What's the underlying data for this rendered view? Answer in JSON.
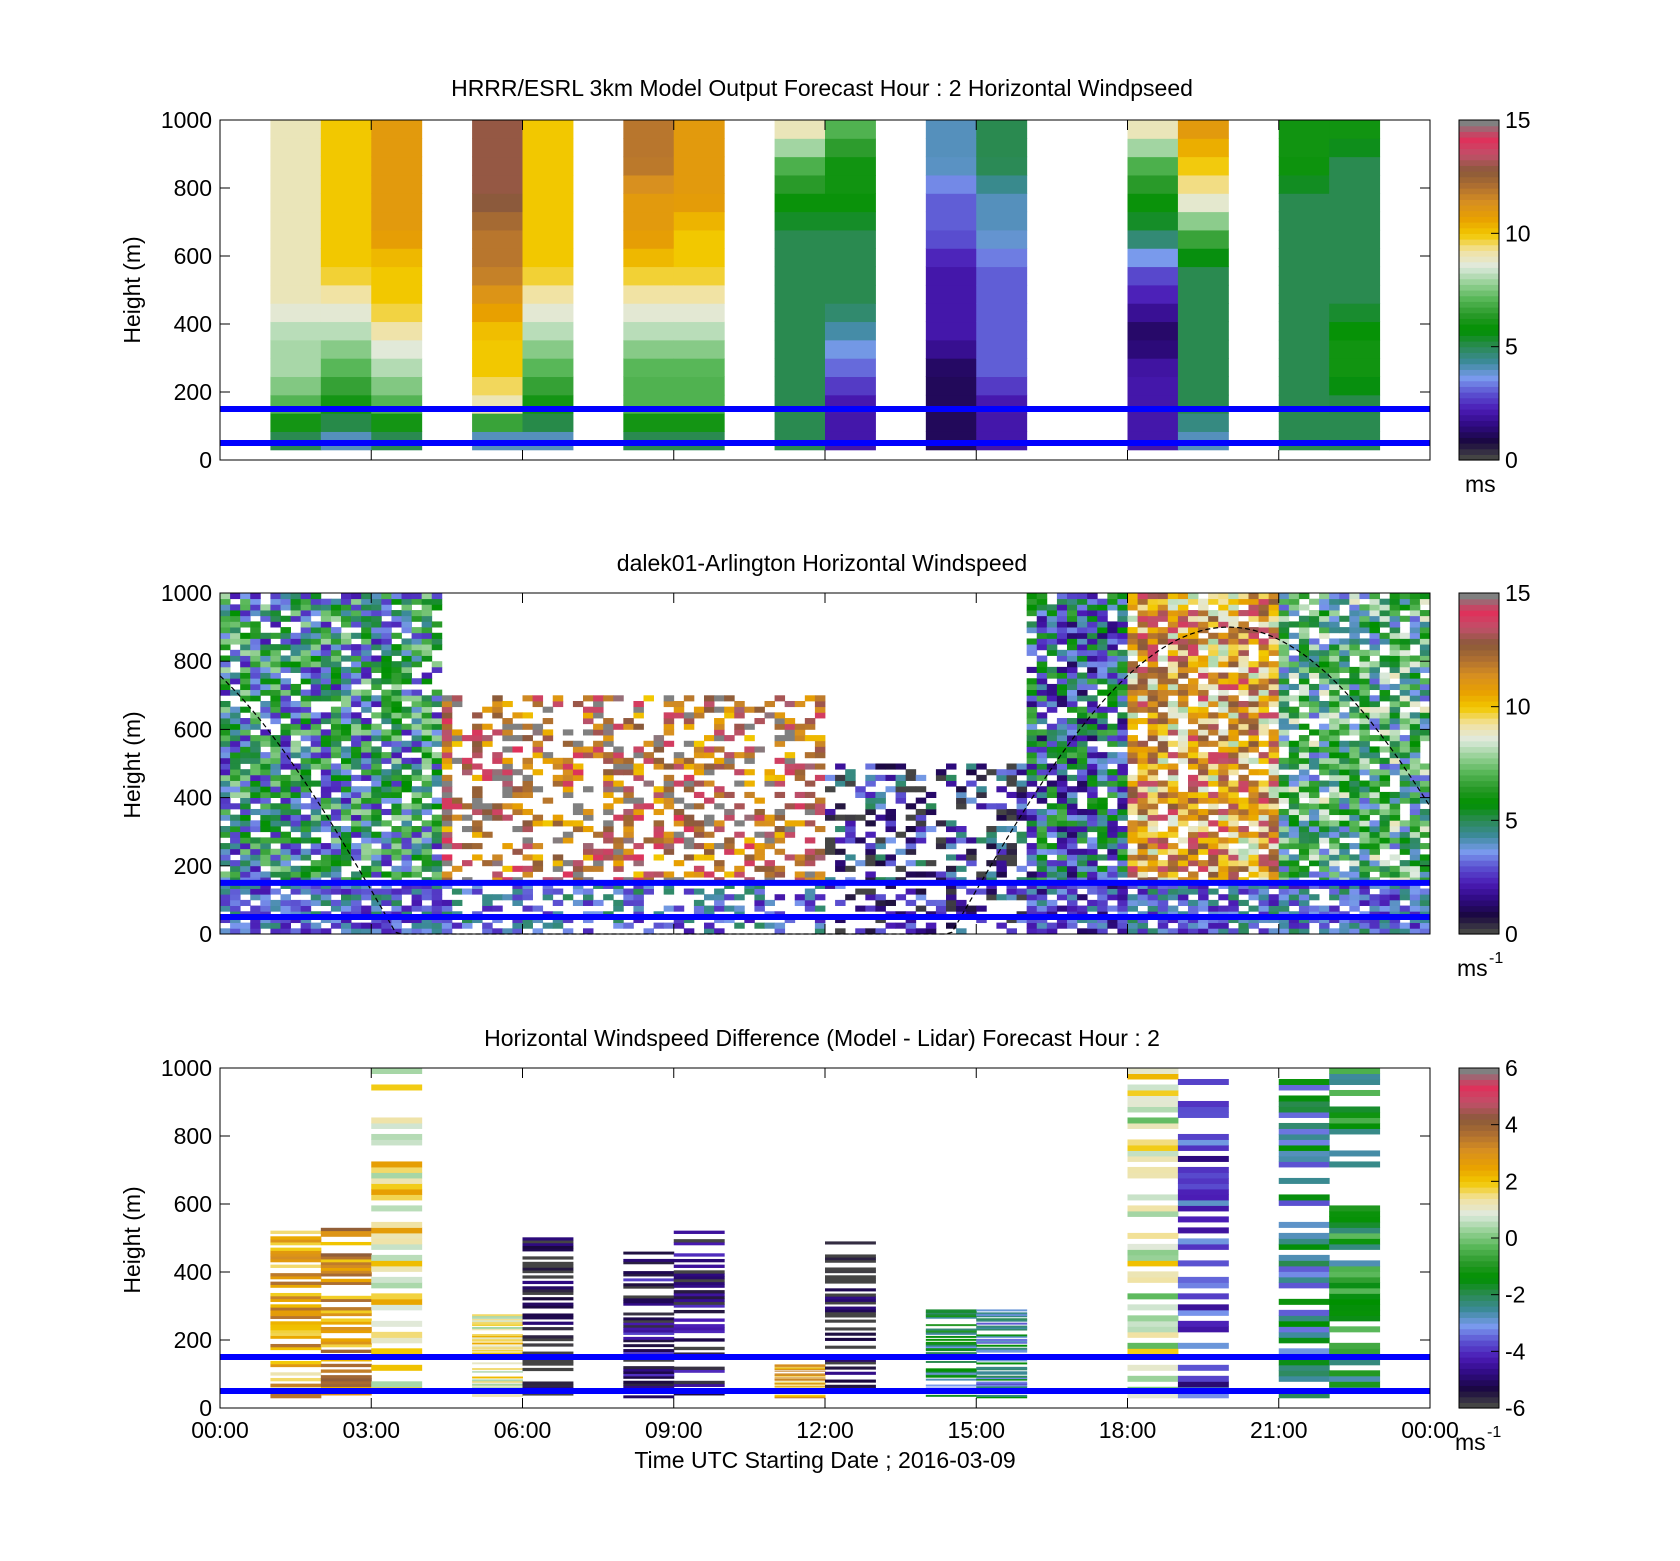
{
  "figure": {
    "xlabel": "Time UTC  Starting Date ; 2016-03-09",
    "x_tick_labels": [
      "00:00",
      "03:00",
      "06:00",
      "09:00",
      "12:00",
      "15:00",
      "18:00",
      "21:00",
      "00:00"
    ]
  },
  "colors": {
    "reference_line": "#0000ff",
    "colormap": [
      "#444444",
      "#1a0840",
      "#2e0a80",
      "#4a1ab4",
      "#5a4fd0",
      "#7a9aee",
      "#3c8a9a",
      "#2a8a50",
      "#009000",
      "#2a9a2a",
      "#5ab85a",
      "#9ad29a",
      "#dfeadf",
      "#f2e2a0",
      "#f2c800",
      "#e8a000",
      "#d89020",
      "#b07030",
      "#8a5a3a",
      "#c0506a",
      "#e0305a",
      "#808080"
    ]
  },
  "chart_data": [
    {
      "type": "heatmap",
      "title": "HRRR/ESRL 3km Model Output   Forecast Hour : 2 Horizontal Windpseed",
      "ylabel": "Height (m)",
      "xlim": [
        "00:00",
        "00:00"
      ],
      "ylim": [
        0,
        1000
      ],
      "y_tick_labels": [
        "0",
        "200",
        "400",
        "600",
        "800",
        "1000"
      ],
      "colorbar": {
        "range": [
          0,
          15
        ],
        "tick_labels": [
          "0",
          "5",
          "10",
          "15"
        ],
        "unit": "ms"
      },
      "reference_lines_m": [
        50,
        150
      ],
      "columns": [
        {
          "time_h": 1.0,
          "speed_levels_ms": [
            5,
            7,
            8,
            8,
            9,
            9,
            9,
            9,
            9,
            9
          ]
        },
        {
          "time_h": 2.0,
          "speed_levels_ms": [
            4,
            6,
            7,
            8,
            9,
            10,
            10,
            10,
            10,
            10
          ]
        },
        {
          "time_h": 3.0,
          "speed_levels_ms": [
            5,
            7,
            8,
            9,
            10,
            10,
            11,
            11,
            11,
            11
          ]
        },
        {
          "time_h": 5.0,
          "speed_levels_ms": [
            4,
            9,
            10,
            10,
            11,
            12,
            12,
            13,
            13,
            13
          ]
        },
        {
          "time_h": 6.0,
          "speed_levels_ms": [
            4,
            6,
            7,
            8,
            9,
            10,
            10,
            10,
            10,
            10
          ]
        },
        {
          "time_h": 8.0,
          "speed_levels_ms": [
            5,
            7,
            7,
            8,
            9,
            10,
            11,
            11,
            12,
            12
          ]
        },
        {
          "time_h": 9.0,
          "speed_levels_ms": [
            5,
            7,
            7,
            8,
            9,
            10,
            10,
            11,
            11,
            11
          ]
        },
        {
          "time_h": 11.0,
          "speed_levels_ms": [
            5,
            5,
            5,
            5,
            5,
            5,
            5,
            6,
            7,
            9
          ]
        },
        {
          "time_h": 12.0,
          "speed_levels_ms": [
            2,
            2,
            3,
            4,
            5,
            5,
            5,
            6,
            6,
            7
          ]
        },
        {
          "time_h": 14.0,
          "speed_levels_ms": [
            1,
            1,
            1,
            2,
            2,
            2,
            3,
            3,
            4,
            4
          ]
        },
        {
          "time_h": 15.0,
          "speed_levels_ms": [
            2,
            2,
            3,
            3,
            3,
            3,
            4,
            4,
            5,
            5
          ]
        },
        {
          "time_h": 18.0,
          "speed_levels_ms": [
            2,
            2,
            2,
            1,
            2,
            3,
            5,
            6,
            7,
            9
          ]
        },
        {
          "time_h": 19.0,
          "speed_levels_ms": [
            4,
            5,
            5,
            5,
            5,
            5,
            7,
            9,
            10,
            11
          ]
        },
        {
          "time_h": 21.0,
          "speed_levels_ms": [
            5,
            5,
            5,
            5,
            5,
            5,
            5,
            5,
            6,
            6
          ]
        },
        {
          "time_h": 22.0,
          "speed_levels_ms": [
            5,
            5,
            6,
            6,
            5,
            5,
            5,
            5,
            5,
            6
          ]
        }
      ]
    },
    {
      "type": "heatmap",
      "title": "dalek01-Arlington  Horizontal Windspeed",
      "ylabel": "Height (m)",
      "xlim": [
        "00:00",
        "00:00"
      ],
      "ylim": [
        0,
        1000
      ],
      "y_tick_labels": [
        "0",
        "200",
        "400",
        "600",
        "800",
        "1000"
      ],
      "colorbar": {
        "range": [
          0,
          15
        ],
        "tick_labels": [
          "0",
          "5",
          "10",
          "15"
        ],
        "unit": "ms",
        "unit_exponent": "-1"
      },
      "reference_lines_m": [
        50,
        150
      ],
      "boundary_layer_curve": {
        "style": "dashed",
        "peak_time_h": 20.0,
        "peak_height_m": 900,
        "near_surface_times_h": [
          1.8,
          14.5
        ]
      },
      "description_regions": [
        {
          "time_h": [
            0,
            4.5
          ],
          "height_m": [
            0,
            1000
          ],
          "typical_ms": 5
        },
        {
          "time_h": [
            4.5,
            12
          ],
          "height_m": [
            0,
            700
          ],
          "typical_ms": 13
        },
        {
          "time_h": [
            12,
            16
          ],
          "height_m": [
            0,
            500
          ],
          "typical_ms": 2
        },
        {
          "time_h": [
            16,
            18
          ],
          "height_m": [
            0,
            1000
          ],
          "typical_ms": 4
        },
        {
          "time_h": [
            18,
            21
          ],
          "height_m": [
            0,
            1000
          ],
          "typical_ms": 11
        },
        {
          "time_h": [
            21,
            24
          ],
          "height_m": [
            0,
            1000
          ],
          "typical_ms": 6
        }
      ]
    },
    {
      "type": "heatmap",
      "title": "Horizontal Windspeed Difference (Model - Lidar) Forecast Hour : 2",
      "ylabel": "Height (m)",
      "xlim": [
        "00:00",
        "00:00"
      ],
      "ylim": [
        0,
        1000
      ],
      "y_tick_labels": [
        "0",
        "200",
        "400",
        "600",
        "800",
        "1000"
      ],
      "colorbar": {
        "range": [
          -6,
          6
        ],
        "tick_labels": [
          "-6",
          "-4",
          "-2",
          "0",
          "2",
          "4",
          "6"
        ],
        "unit": "ms",
        "unit_exponent": "-1"
      },
      "reference_lines_m": [
        50,
        150
      ],
      "columns": [
        {
          "time_h": 1.0,
          "height_m": [
            30,
            530
          ],
          "typical_diff_ms": 2.5
        },
        {
          "time_h": 2.0,
          "height_m": [
            30,
            530
          ],
          "typical_diff_ms": 3
        },
        {
          "time_h": 3.0,
          "height_m": [
            30,
            1000
          ],
          "typical_diff_ms": 1.5
        },
        {
          "time_h": 5.0,
          "height_m": [
            30,
            280
          ],
          "typical_diff_ms": 1.5
        },
        {
          "time_h": 6.0,
          "height_m": [
            30,
            510
          ],
          "typical_diff_ms": -6
        },
        {
          "time_h": 8.0,
          "height_m": [
            30,
            460
          ],
          "typical_diff_ms": -5
        },
        {
          "time_h": 9.0,
          "height_m": [
            30,
            530
          ],
          "typical_diff_ms": -5
        },
        {
          "time_h": 11.0,
          "height_m": [
            30,
            130
          ],
          "typical_diff_ms": 2.5
        },
        {
          "time_h": 12.0,
          "height_m": [
            30,
            490
          ],
          "typical_diff_ms": -6
        },
        {
          "time_h": 14.0,
          "height_m": [
            30,
            290
          ],
          "typical_diff_ms": -2
        },
        {
          "time_h": 15.0,
          "height_m": [
            30,
            290
          ],
          "typical_diff_ms": -2.5
        },
        {
          "time_h": 18.0,
          "height_m": [
            30,
            1000
          ],
          "typical_diff_ms": 1
        },
        {
          "time_h": 19.0,
          "height_m": [
            30,
            1000
          ],
          "typical_diff_ms": -4
        },
        {
          "time_h": 21.0,
          "height_m": [
            30,
            1000
          ],
          "typical_diff_ms": -2.5
        },
        {
          "time_h": 22.0,
          "height_m": [
            30,
            1000
          ],
          "typical_diff_ms": -1.5
        }
      ]
    }
  ]
}
